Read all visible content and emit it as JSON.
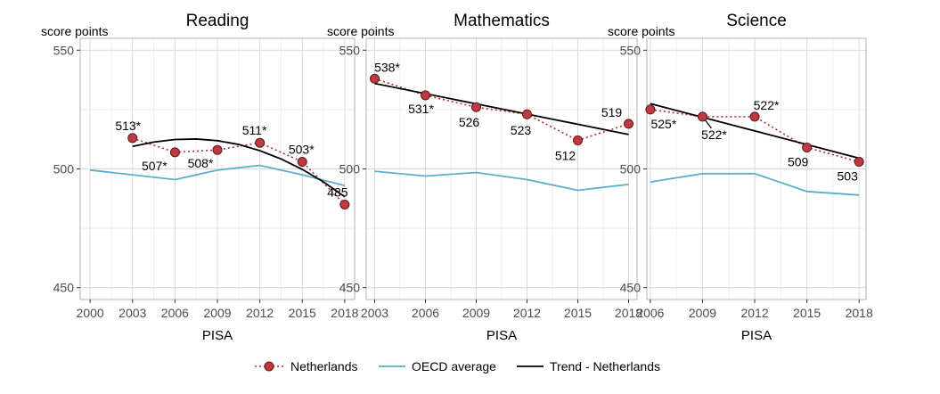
{
  "ylabel": "score points",
  "xlabel": "PISA",
  "colors": {
    "netherlands": "#c0393f",
    "netherlands_line": "#b02a30",
    "oecd": "#5aaecb",
    "trend": "#000000",
    "grid": "#d9d9d9",
    "panel_border": "#b3b3b3"
  },
  "legend": {
    "netherlands": "Netherlands",
    "oecd": "OECD average",
    "trend": "Trend - Netherlands"
  },
  "chart_data": [
    {
      "type": "line",
      "title": "Reading",
      "xlabel": "PISA",
      "ylabel": "score points",
      "ylim": [
        445,
        555
      ],
      "xlim": [
        1999.3,
        2018.7
      ],
      "x_ticks": [
        "2000",
        "2003",
        "2006",
        "2009",
        "2012",
        "2015",
        "2018"
      ],
      "y_ticks": [
        "450",
        "500",
        "550"
      ],
      "netherlands": {
        "x": [
          2003,
          2006,
          2009,
          2012,
          2015,
          2018
        ],
        "y": [
          513,
          507,
          508,
          511,
          503,
          485
        ],
        "labels": [
          "513*",
          "507*",
          "508*",
          "511*",
          "503*",
          "485"
        ]
      },
      "oecd": {
        "x": [
          2000,
          2003,
          2006,
          2009,
          2012,
          2015,
          2018
        ],
        "y": [
          499.5,
          497.5,
          495.5,
          499.5,
          501.5,
          497.5,
          493
        ]
      },
      "trend": {
        "x": [
          2003,
          2004.5,
          2006,
          2007.5,
          2009,
          2010.5,
          2012,
          2013.5,
          2015,
          2016.5,
          2018
        ],
        "y": [
          509.5,
          511.3,
          512.4,
          512.6,
          511.9,
          510.3,
          507.7,
          504.2,
          499.8,
          494.5,
          488.3
        ]
      }
    },
    {
      "type": "line",
      "title": "Mathematics",
      "xlabel": "PISA",
      "ylabel": "score points",
      "ylim": [
        445,
        555
      ],
      "xlim": [
        2002.5,
        2018.5
      ],
      "x_ticks": [
        "2003",
        "2006",
        "2009",
        "2012",
        "2015",
        "2018"
      ],
      "y_ticks": [
        "450",
        "500",
        "550"
      ],
      "netherlands": {
        "x": [
          2003,
          2006,
          2009,
          2012,
          2015,
          2018
        ],
        "y": [
          538,
          531,
          526,
          523,
          512,
          519
        ],
        "labels": [
          "538*",
          "531*",
          "526",
          "523",
          "512",
          "519"
        ]
      },
      "oecd": {
        "x": [
          2003,
          2006,
          2009,
          2012,
          2015,
          2018
        ],
        "y": [
          499,
          497,
          498.5,
          495.5,
          491,
          493.5
        ]
      },
      "trend": {
        "x": [
          2003,
          2018
        ],
        "y": [
          536,
          514.5
        ]
      }
    },
    {
      "type": "line",
      "title": "Science",
      "xlabel": "PISA",
      "ylabel": "score points",
      "ylim": [
        445,
        555
      ],
      "xlim": [
        2005.8,
        2018.4
      ],
      "x_ticks": [
        "2006",
        "2009",
        "2012",
        "2015",
        "2018"
      ],
      "y_ticks": [
        "450",
        "500",
        "550"
      ],
      "netherlands": {
        "x": [
          2006,
          2009,
          2012,
          2015,
          2018
        ],
        "y": [
          525,
          522,
          522,
          509,
          503
        ],
        "labels": [
          "525*",
          "522*",
          "522*",
          "509",
          "503"
        ]
      },
      "oecd": {
        "x": [
          2006,
          2009,
          2012,
          2015,
          2018
        ],
        "y": [
          494.5,
          498,
          498,
          490.5,
          489
        ]
      },
      "trend": {
        "x": [
          2006,
          2018
        ],
        "y": [
          527.5,
          504.5
        ]
      }
    }
  ]
}
